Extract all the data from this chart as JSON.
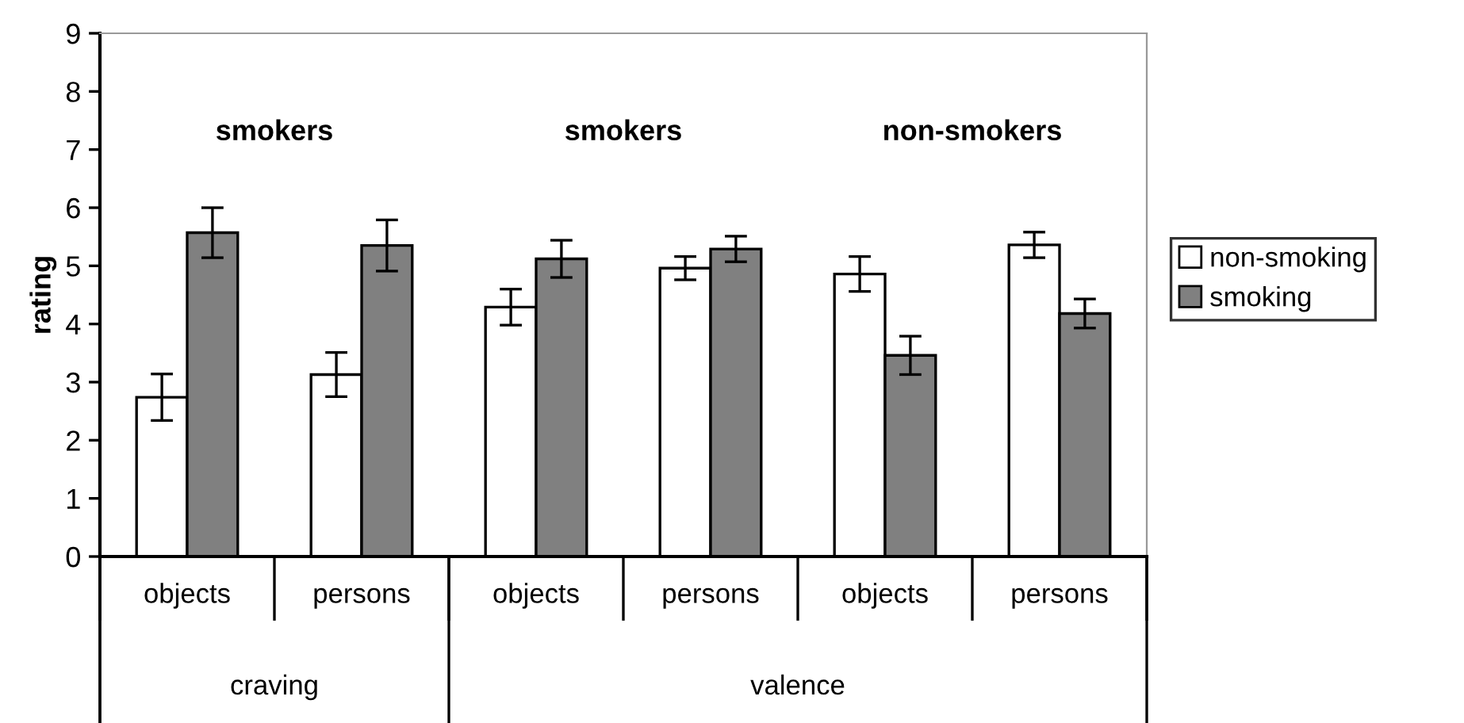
{
  "chart_data": {
    "type": "bar",
    "ylabel": "rating",
    "categories": [
      "objects",
      "persons",
      "objects",
      "persons",
      "objects",
      "persons"
    ],
    "series": [
      {
        "name": "non-smoking",
        "color": "#ffffff",
        "values": [
          2.74,
          3.13,
          4.29,
          4.96,
          4.86,
          5.36
        ],
        "errors": [
          0.4,
          0.38,
          0.31,
          0.2,
          0.3,
          0.22
        ]
      },
      {
        "name": "smoking",
        "color": "#808080",
        "values": [
          5.57,
          5.35,
          5.12,
          5.29,
          3.46,
          4.18
        ],
        "errors": [
          0.43,
          0.44,
          0.32,
          0.22,
          0.33,
          0.25
        ]
      }
    ],
    "annotations": [
      "smokers",
      "smokers",
      "non-smokers",
      "craving",
      "valence"
    ],
    "ylim": [
      0,
      9
    ],
    "yticks": [
      0,
      1,
      2,
      3,
      4,
      5,
      6,
      7,
      8,
      9
    ],
    "grid": false,
    "legend": "right"
  }
}
